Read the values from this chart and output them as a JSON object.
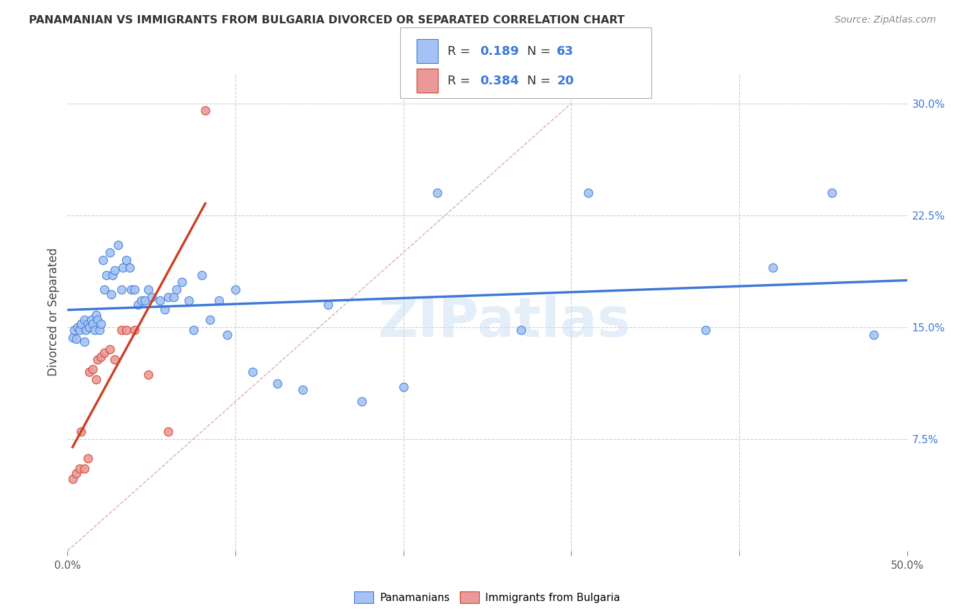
{
  "title": "PANAMANIAN VS IMMIGRANTS FROM BULGARIA DIVORCED OR SEPARATED CORRELATION CHART",
  "source": "Source: ZipAtlas.com",
  "ylabel": "Divorced or Separated",
  "xlim": [
    0.0,
    0.5
  ],
  "ylim": [
    0.0,
    0.32
  ],
  "xticks": [
    0.0,
    0.1,
    0.2,
    0.3,
    0.4,
    0.5
  ],
  "xticklabels": [
    "0.0%",
    "",
    "",
    "",
    "",
    "50.0%"
  ],
  "yticks_right": [
    0.075,
    0.15,
    0.225,
    0.3
  ],
  "ytick_labels_right": [
    "7.5%",
    "15.0%",
    "22.5%",
    "30.0%"
  ],
  "watermark_text": "ZIPatlas",
  "legend_R1": "0.189",
  "legend_N1": "63",
  "legend_R2": "0.384",
  "legend_N2": "20",
  "blue_color": "#a4c2f4",
  "pink_color": "#ea9999",
  "line_blue": "#3c78d8",
  "line_pink": "#cc4125",
  "line_dashed_color": "#ccaaaa",
  "pan_x": [
    0.003,
    0.004,
    0.005,
    0.006,
    0.007,
    0.008,
    0.01,
    0.01,
    0.011,
    0.012,
    0.013,
    0.014,
    0.015,
    0.016,
    0.017,
    0.018,
    0.019,
    0.02,
    0.021,
    0.022,
    0.023,
    0.025,
    0.026,
    0.027,
    0.028,
    0.03,
    0.032,
    0.033,
    0.035,
    0.037,
    0.038,
    0.04,
    0.042,
    0.044,
    0.046,
    0.048,
    0.05,
    0.055,
    0.058,
    0.06,
    0.063,
    0.065,
    0.068,
    0.072,
    0.075,
    0.08,
    0.085,
    0.09,
    0.095,
    0.1,
    0.11,
    0.125,
    0.14,
    0.155,
    0.175,
    0.2,
    0.22,
    0.27,
    0.31,
    0.38,
    0.42,
    0.455,
    0.48
  ],
  "pan_y": [
    0.143,
    0.148,
    0.142,
    0.15,
    0.148,
    0.152,
    0.14,
    0.155,
    0.148,
    0.152,
    0.15,
    0.155,
    0.152,
    0.148,
    0.158,
    0.155,
    0.148,
    0.152,
    0.195,
    0.175,
    0.185,
    0.2,
    0.172,
    0.185,
    0.188,
    0.205,
    0.175,
    0.19,
    0.195,
    0.19,
    0.175,
    0.175,
    0.165,
    0.168,
    0.168,
    0.175,
    0.17,
    0.168,
    0.162,
    0.17,
    0.17,
    0.175,
    0.18,
    0.168,
    0.148,
    0.185,
    0.155,
    0.168,
    0.145,
    0.175,
    0.12,
    0.112,
    0.108,
    0.165,
    0.1,
    0.11,
    0.24,
    0.148,
    0.24,
    0.148,
    0.19,
    0.24,
    0.145
  ],
  "bul_x": [
    0.003,
    0.005,
    0.007,
    0.008,
    0.01,
    0.012,
    0.013,
    0.015,
    0.017,
    0.018,
    0.02,
    0.022,
    0.025,
    0.028,
    0.032,
    0.035,
    0.04,
    0.048,
    0.06,
    0.082
  ],
  "bul_y": [
    0.048,
    0.052,
    0.055,
    0.08,
    0.055,
    0.062,
    0.12,
    0.122,
    0.115,
    0.128,
    0.13,
    0.133,
    0.135,
    0.128,
    0.148,
    0.148,
    0.148,
    0.118,
    0.08,
    0.295
  ]
}
